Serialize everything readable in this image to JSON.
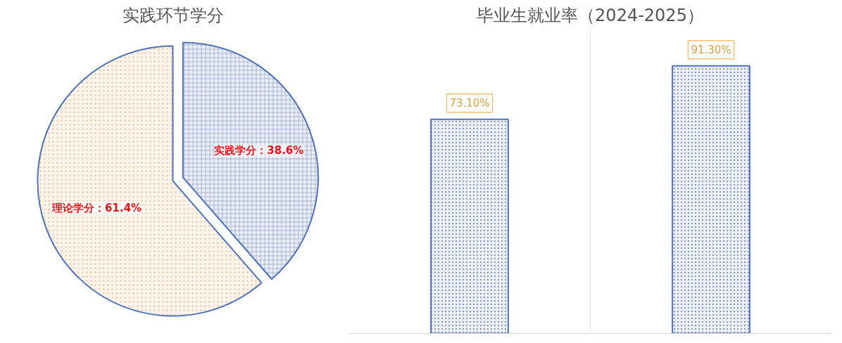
{
  "chart_data": [
    {
      "type": "pie",
      "title": "实践环节学分",
      "categories": [
        "实践学分",
        "理论学分"
      ],
      "values": [
        38.6,
        61.4
      ],
      "colors": [
        "#e9eef8",
        "#fdf5ec"
      ],
      "value_labels": [
        "38.6%",
        "61.4%"
      ]
    },
    {
      "type": "bar",
      "title": "毕业生就业率（2024-2025）",
      "categories": [
        null,
        null
      ],
      "values": [
        73.1,
        91.3
      ],
      "color": "#eef1f8",
      "value_labels": [
        "73.10%",
        "91.30%"
      ],
      "grid": "x"
    }
  ]
}
